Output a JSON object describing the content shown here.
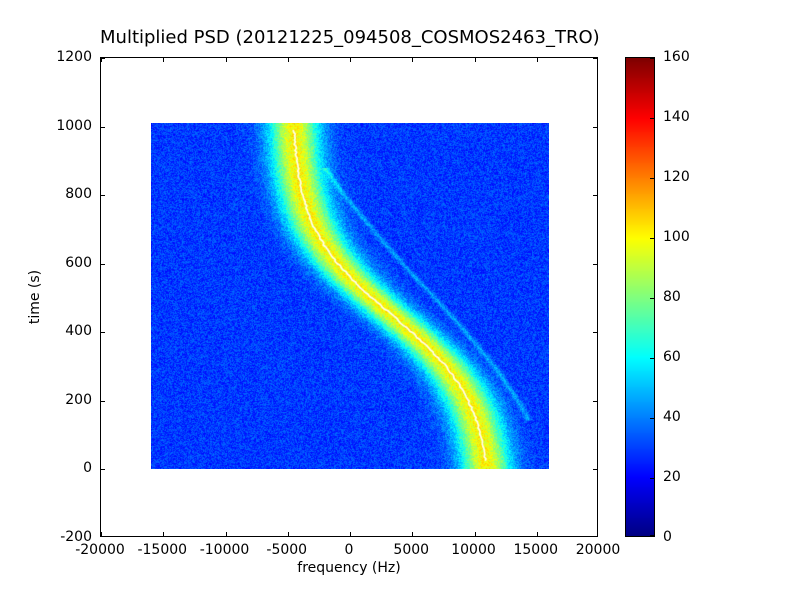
{
  "chart_data": {
    "type": "heatmap",
    "title": "Multiplied PSD (20121225_094508_COSMOS2463_TRO)",
    "xlabel": "frequency (Hz)",
    "ylabel": "time (s)",
    "xlim": [
      -20000,
      20000
    ],
    "ylim": [
      -200,
      1200
    ],
    "x_ticks": [
      -20000,
      -15000,
      -10000,
      -5000,
      0,
      5000,
      10000,
      15000,
      20000
    ],
    "y_ticks": [
      -200,
      0,
      200,
      400,
      600,
      800,
      1000,
      1200
    ],
    "grid": false,
    "image_extent": {
      "freq_min": -16000,
      "freq_max": 16000,
      "time_min": 0,
      "time_max": 1010
    },
    "colormap": "jet",
    "colorbar": {
      "min": 0,
      "max": 160,
      "ticks": [
        0,
        20,
        40,
        60,
        80,
        100,
        120,
        140,
        160
      ]
    },
    "background_noise": {
      "mean_level": 29,
      "amplitude": 9
    },
    "doppler_track": {
      "peak_level": 72,
      "width_sigma_hz": 2000,
      "core_color": "#ffffff",
      "points": [
        [
          0,
          10980
        ],
        [
          50,
          10780
        ],
        [
          100,
          10490
        ],
        [
          150,
          10090
        ],
        [
          200,
          9510
        ],
        [
          250,
          8720
        ],
        [
          300,
          7700
        ],
        [
          350,
          6430
        ],
        [
          400,
          4950
        ],
        [
          450,
          3350
        ],
        [
          500,
          1750
        ],
        [
          550,
          270
        ],
        [
          600,
          -1000
        ],
        [
          650,
          -2020
        ],
        [
          700,
          -2810
        ],
        [
          750,
          -3390
        ],
        [
          800,
          -3790
        ],
        [
          850,
          -4080
        ],
        [
          900,
          -4290
        ],
        [
          950,
          -4420
        ],
        [
          1000,
          -4510
        ],
        [
          1010,
          -4530
        ]
      ]
    },
    "secondary_track": {
      "peak_level": 16,
      "width_sigma_hz": 260,
      "points": [
        [
          140,
          14400
        ],
        [
          200,
          13500
        ],
        [
          300,
          11600
        ],
        [
          400,
          9300
        ],
        [
          500,
          6800
        ],
        [
          600,
          4200
        ],
        [
          700,
          1800
        ],
        [
          800,
          -500
        ],
        [
          880,
          -2000
        ]
      ]
    }
  }
}
